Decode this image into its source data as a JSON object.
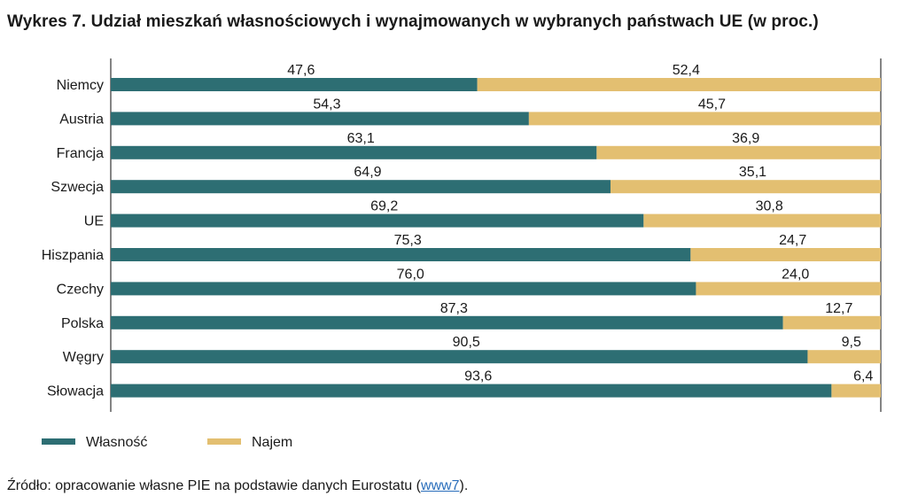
{
  "title": "Wykres 7.  Udział mieszkań własnościowych i wynajmowanych w wybranych państwach UE (w proc.)",
  "source": {
    "text": "Źródło: opracowanie własne PIE na podstawie danych Eurostatu (",
    "link": "www7",
    "end": ")."
  },
  "colors": {
    "Własność": "#2d6e73",
    "Najem": "#e3bf71"
  },
  "chart_data": {
    "type": "bar",
    "orientation": "horizontal",
    "stacked": true,
    "categories": [
      "Niemcy",
      "Austria",
      "Francja",
      "Szwecja",
      "UE",
      "Hiszpania",
      "Czechy",
      "Polska",
      "Węgry",
      "Słowacja"
    ],
    "series": [
      {
        "name": "Własność",
        "values": [
          47.6,
          54.3,
          63.1,
          64.9,
          69.2,
          75.3,
          76.0,
          87.3,
          90.5,
          93.6
        ],
        "labels": [
          "47,6",
          "54,3",
          "63,1",
          "64,9",
          "69,2",
          "75,3",
          "76,0",
          "87,3",
          "90,5",
          "93,6"
        ]
      },
      {
        "name": "Najem",
        "values": [
          52.4,
          45.7,
          36.9,
          35.1,
          30.8,
          24.7,
          24.0,
          12.7,
          9.5,
          6.4
        ],
        "labels": [
          "52,4",
          "45,7",
          "36,9",
          "35,1",
          "30,8",
          "24,7",
          "24,0",
          "12,7",
          "9,5",
          "6,4"
        ]
      }
    ],
    "xlim": [
      0,
      100
    ],
    "grid": false,
    "legend_position": "bottom-left"
  }
}
